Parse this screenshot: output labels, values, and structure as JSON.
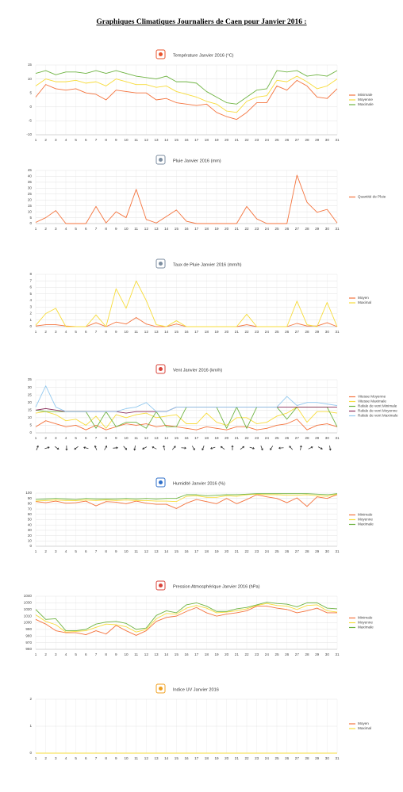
{
  "title": "Graphiques Climatiques Journaliers de Caen pour Janvier 2016 :",
  "chart_data": [
    {
      "type": "line",
      "title": "Température Janvier 2016 (°C)",
      "categories": [
        "1",
        "2",
        "3",
        "4",
        "5",
        "6",
        "7",
        "8",
        "9",
        "10",
        "11",
        "12",
        "13",
        "14",
        "15",
        "16",
        "17",
        "18",
        "19",
        "20",
        "21",
        "22",
        "23",
        "24",
        "25",
        "26",
        "27",
        "28",
        "29",
        "30",
        "31"
      ],
      "ylim": [
        -10,
        15
      ],
      "yticks": [
        -10,
        -5,
        0,
        5,
        10,
        15
      ],
      "grid": true,
      "series": [
        {
          "name": "Minimale",
          "color": "#f4733d",
          "values": [
            3.5,
            8,
            6.5,
            6,
            6.5,
            5,
            4.5,
            2.5,
            6,
            5.5,
            5,
            5,
            2.5,
            3,
            1.5,
            1,
            0.5,
            1,
            -2,
            -3.5,
            -4.5,
            -2,
            1.5,
            1.5,
            7.5,
            6,
            9.5,
            7.5,
            3.5,
            3,
            6.5
          ]
        },
        {
          "name": "Moyenne",
          "color": "#f7dc3b",
          "values": [
            7.5,
            10,
            9,
            9,
            9.5,
            8.5,
            9,
            7.5,
            10,
            9,
            8,
            8,
            7,
            7.5,
            5.5,
            4.5,
            3.5,
            2,
            1,
            -1.5,
            -2,
            2,
            3.5,
            4,
            9.5,
            9,
            11,
            9,
            6.5,
            7.5,
            10
          ]
        },
        {
          "name": "Maximale",
          "color": "#6fb443",
          "values": [
            12,
            13,
            11.5,
            12.5,
            12.5,
            12,
            13,
            12,
            13,
            12,
            11,
            10.5,
            10,
            11,
            9,
            9,
            8.5,
            5.5,
            3.5,
            1.5,
            1,
            3.5,
            6,
            6.5,
            13,
            12.5,
            13,
            11,
            11.5,
            11,
            13
          ]
        }
      ]
    },
    {
      "type": "line",
      "title": "Pluie Janvier 2016 (mm)",
      "categories": [
        "1",
        "2",
        "3",
        "4",
        "5",
        "6",
        "7",
        "8",
        "9",
        "10",
        "11",
        "12",
        "13",
        "14",
        "15",
        "16",
        "17",
        "18",
        "19",
        "20",
        "21",
        "22",
        "23",
        "24",
        "25",
        "26",
        "27",
        "28",
        "29",
        "30",
        "31"
      ],
      "ylim": [
        0,
        45
      ],
      "yticks": [
        0,
        5,
        10,
        15,
        20,
        25,
        30,
        35,
        40,
        45
      ],
      "grid": true,
      "series": [
        {
          "name": "Quantité de Pluie",
          "color": "#f4733d",
          "values": [
            1,
            5,
            11,
            0,
            0,
            0,
            14.5,
            0.5,
            10,
            5,
            29,
            3.5,
            0.5,
            6,
            11.5,
            2,
            0,
            0,
            0,
            0,
            0,
            14.5,
            4,
            0,
            0,
            0,
            41,
            18,
            9.5,
            12,
            0.5
          ]
        }
      ]
    },
    {
      "type": "line",
      "title": "Taux de Pluie Janvier 2016 (mm/h)",
      "categories": [
        "1",
        "2",
        "3",
        "4",
        "5",
        "6",
        "7",
        "8",
        "9",
        "10",
        "11",
        "12",
        "13",
        "14",
        "15",
        "16",
        "17",
        "18",
        "19",
        "20",
        "21",
        "22",
        "23",
        "24",
        "25",
        "26",
        "27",
        "28",
        "29",
        "30",
        "31"
      ],
      "ylim": [
        0,
        8
      ],
      "yticks": [
        0,
        1,
        2,
        3,
        4,
        5,
        6,
        7,
        8
      ],
      "grid": true,
      "series": [
        {
          "name": "Moyen",
          "color": "#f4733d",
          "values": [
            0.1,
            0.3,
            0.3,
            0.1,
            0,
            0,
            0.6,
            0,
            0.7,
            0.4,
            1.4,
            0.4,
            0,
            0,
            0.4,
            0,
            0,
            0,
            0,
            0,
            0,
            0.3,
            0,
            0,
            0,
            0,
            0.5,
            0.1,
            0.1,
            0.6,
            0
          ]
        },
        {
          "name": "Maximal",
          "color": "#f7dc3b",
          "values": [
            0.2,
            2,
            2.8,
            0,
            0,
            0,
            1.8,
            0,
            5.8,
            2.8,
            7,
            4,
            0.3,
            0,
            0.9,
            0,
            0,
            0,
            0,
            0,
            0,
            1.9,
            0,
            0,
            0,
            0,
            3.9,
            0.3,
            0,
            3.7,
            0
          ]
        }
      ]
    },
    {
      "type": "line",
      "title": "Vent Janvier 2016 (km/h)",
      "wind_arrows": true,
      "categories": [
        "1",
        "2",
        "3",
        "4",
        "5",
        "6",
        "7",
        "8",
        "9",
        "10",
        "11",
        "12",
        "13",
        "14",
        "15",
        "16",
        "17",
        "18",
        "19",
        "20",
        "21",
        "22",
        "23",
        "24",
        "25",
        "26",
        "27",
        "28",
        "29",
        "30",
        "31"
      ],
      "ylim": [
        0,
        35
      ],
      "yticks": [
        0,
        5,
        10,
        15,
        20,
        25,
        30,
        35
      ],
      "grid": true,
      "series": [
        {
          "name": "Vitesse Moyenne",
          "color": "#f4733d",
          "values": [
            4,
            8,
            6,
            4,
            5,
            2,
            5,
            2,
            4,
            6,
            5,
            6,
            4,
            5,
            4,
            3,
            2,
            4,
            3,
            2,
            4,
            4,
            2,
            3,
            5,
            6,
            9,
            2,
            5,
            6,
            4
          ]
        },
        {
          "name": "Vitesse Maximale",
          "color": "#f7dc3b",
          "values": [
            13,
            14,
            12,
            8,
            9,
            5,
            11,
            3,
            12,
            10,
            12,
            13,
            10,
            11,
            12,
            6,
            6,
            13,
            7,
            5,
            10,
            10,
            6,
            7,
            11,
            13,
            17,
            7,
            14,
            14,
            13
          ]
        },
        {
          "name": "Rafale de vent Minimale",
          "color": "#6fb443",
          "values": [
            15,
            14,
            14,
            14,
            14,
            14,
            3,
            14,
            4,
            7,
            7,
            3,
            14,
            4,
            4,
            17,
            17,
            17,
            17,
            3,
            17,
            3,
            17,
            17,
            17,
            9,
            17,
            17,
            17,
            17,
            4
          ]
        },
        {
          "name": "Rafale de vent Moyenne",
          "color": "#8a2f5c",
          "values": [
            15,
            16,
            15,
            14,
            14,
            14,
            14,
            14,
            14,
            13,
            14,
            14,
            14,
            14,
            17,
            17,
            17,
            17,
            17,
            17,
            17,
            17,
            17,
            17,
            17,
            17,
            17,
            17,
            17,
            17,
            17
          ]
        },
        {
          "name": "Rafale de vent Maximale",
          "color": "#93c9ef",
          "values": [
            17,
            31,
            17,
            14,
            14,
            14,
            14,
            14,
            14,
            16,
            17,
            20,
            14,
            14,
            17,
            17,
            17,
            17,
            17,
            17,
            17,
            17,
            17,
            17,
            17,
            24,
            18,
            20,
            20,
            19,
            18
          ]
        }
      ]
    },
    {
      "type": "line",
      "title": "Humidité Janvier 2016 (%)",
      "categories": [
        "1",
        "2",
        "3",
        "4",
        "5",
        "6",
        "7",
        "8",
        "9",
        "10",
        "11",
        "12",
        "13",
        "14",
        "15",
        "16",
        "17",
        "18",
        "19",
        "20",
        "21",
        "22",
        "23",
        "24",
        "25",
        "26",
        "27",
        "28",
        "29",
        "30",
        "31"
      ],
      "ylim": [
        0,
        100
      ],
      "yticks": [
        0,
        10,
        20,
        30,
        40,
        50,
        60,
        70,
        80,
        90,
        100
      ],
      "grid": true,
      "series": [
        {
          "name": "Minimale",
          "color": "#f4733d",
          "values": [
            84,
            82,
            85,
            81,
            82,
            85,
            76,
            84,
            83,
            80,
            85,
            81,
            79,
            79,
            71,
            81,
            88,
            84,
            80,
            90,
            80,
            88,
            97,
            93,
            90,
            82,
            91,
            75,
            93,
            90,
            97
          ]
        },
        {
          "name": "Moyenne",
          "color": "#f7dc3b",
          "values": [
            85,
            86,
            87,
            86,
            86,
            87,
            86,
            87,
            86,
            87,
            86,
            86,
            85,
            85,
            84,
            94,
            95,
            92,
            92,
            95,
            94,
            97,
            98,
            97,
            97,
            96,
            96,
            97,
            95,
            94,
            98
          ]
        },
        {
          "name": "Maximale",
          "color": "#6fb443",
          "values": [
            88,
            89,
            90,
            89,
            88,
            90,
            89,
            89,
            89,
            90,
            89,
            90,
            89,
            90,
            90,
            97,
            97,
            95,
            96,
            97,
            97,
            98,
            99,
            99,
            99,
            99,
            99,
            99,
            98,
            97,
            99
          ]
        }
      ]
    },
    {
      "type": "line",
      "title": "Pression Atmosphérique Janvier 2016 (hPa)",
      "categories": [
        "1",
        "2",
        "3",
        "4",
        "5",
        "6",
        "7",
        "8",
        "9",
        "10",
        "11",
        "12",
        "13",
        "14",
        "15",
        "16",
        "17",
        "18",
        "19",
        "20",
        "21",
        "22",
        "23",
        "24",
        "25",
        "26",
        "27",
        "28",
        "29",
        "30",
        "31"
      ],
      "ylim": [
        960,
        1040
      ],
      "yticks": [
        960,
        970,
        980,
        990,
        1000,
        1010,
        1020,
        1030,
        1040
      ],
      "grid": true,
      "series": [
        {
          "name": "Minimale",
          "color": "#f4733d",
          "values": [
            1005,
            998,
            988,
            985,
            985,
            982,
            988,
            983,
            996,
            988,
            981,
            988,
            1002,
            1008,
            1010,
            1017,
            1023,
            1015,
            1010,
            1013,
            1015,
            1018,
            1025,
            1025,
            1022,
            1020,
            1015,
            1018,
            1022,
            1015,
            1015
          ]
        },
        {
          "name": "Moyenne",
          "color": "#f7dc3b",
          "values": [
            1012,
            1002,
            997,
            986,
            987,
            988,
            993,
            998,
            997,
            994,
            986,
            990,
            1006,
            1014,
            1013,
            1022,
            1026,
            1022,
            1015,
            1016,
            1018,
            1021,
            1026,
            1029,
            1026,
            1025,
            1020,
            1026,
            1027,
            1018,
            1016
          ]
        },
        {
          "name": "Maximale",
          "color": "#6fb443",
          "values": [
            1020,
            1005,
            1006,
            988,
            988,
            990,
            998,
            1001,
            1002,
            999,
            990,
            992,
            1011,
            1018,
            1015,
            1027,
            1030,
            1025,
            1017,
            1017,
            1021,
            1023,
            1027,
            1031,
            1029,
            1028,
            1024,
            1030,
            1030,
            1022,
            1021
          ]
        }
      ]
    },
    {
      "type": "line",
      "title": "Indice UV Janvier 2016",
      "categories": [
        "1",
        "2",
        "3",
        "4",
        "5",
        "6",
        "7",
        "8",
        "9",
        "10",
        "11",
        "12",
        "13",
        "14",
        "15",
        "16",
        "17",
        "18",
        "19",
        "20",
        "21",
        "22",
        "23",
        "24",
        "25",
        "26",
        "27",
        "28",
        "29",
        "30",
        "31"
      ],
      "ylim": [
        0,
        2
      ],
      "yticks": [
        0,
        1,
        2
      ],
      "grid": true,
      "series": [
        {
          "name": "Moyen",
          "color": "#f4733d",
          "values": [
            0,
            0,
            0,
            0,
            0,
            0,
            0,
            0,
            0,
            0,
            0,
            0,
            0,
            0,
            0,
            0,
            0,
            0,
            0,
            0,
            0,
            0,
            0,
            0,
            0,
            0,
            0,
            0,
            0,
            0,
            0
          ]
        },
        {
          "name": "Maximal",
          "color": "#f7dc3b",
          "values": [
            0,
            0,
            0,
            0,
            0,
            0,
            0,
            0,
            0,
            0,
            0,
            0,
            0,
            0,
            0,
            0,
            0,
            0,
            0,
            0,
            0,
            0,
            0,
            0,
            0,
            0,
            0,
            0,
            0,
            0,
            0
          ]
        }
      ]
    }
  ]
}
